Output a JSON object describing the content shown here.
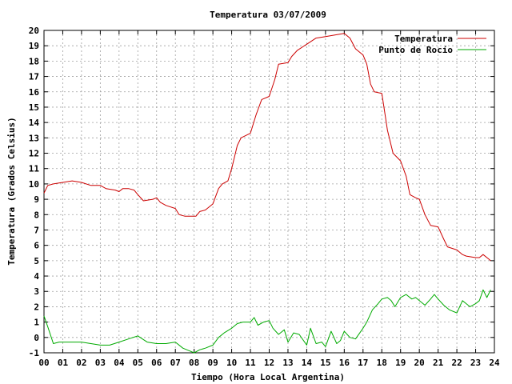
{
  "chart_data": {
    "type": "line",
    "title": "Temperatura 03/07/2009",
    "xlabel": "Tiempo (Hora Local Argentina)",
    "ylabel": "Temperatura (Grados Celsius)",
    "xlim": [
      0,
      24
    ],
    "ylim": [
      -1,
      20
    ],
    "xticks": [
      "00",
      "01",
      "02",
      "03",
      "04",
      "05",
      "06",
      "07",
      "08",
      "09",
      "10",
      "11",
      "12",
      "13",
      "14",
      "15",
      "16",
      "17",
      "18",
      "19",
      "20",
      "21",
      "22",
      "23",
      "24"
    ],
    "yticks": [
      "-1",
      "0",
      "1",
      "2",
      "3",
      "4",
      "5",
      "6",
      "7",
      "8",
      "9",
      "10",
      "11",
      "12",
      "13",
      "14",
      "15",
      "16",
      "17",
      "18",
      "19",
      "20"
    ],
    "grid": true,
    "legend_position": "top-right",
    "series": [
      {
        "name": "Temperatura",
        "color": "#cc0000",
        "points": [
          [
            0.0,
            9.4
          ],
          [
            0.2,
            9.9
          ],
          [
            0.5,
            10.0
          ],
          [
            1.0,
            10.1
          ],
          [
            1.5,
            10.2
          ],
          [
            2.0,
            10.1
          ],
          [
            2.5,
            9.9
          ],
          [
            3.0,
            9.9
          ],
          [
            3.3,
            9.7
          ],
          [
            3.8,
            9.6
          ],
          [
            4.0,
            9.5
          ],
          [
            4.2,
            9.7
          ],
          [
            4.5,
            9.7
          ],
          [
            4.8,
            9.6
          ],
          [
            5.0,
            9.3
          ],
          [
            5.3,
            8.9
          ],
          [
            5.8,
            9.0
          ],
          [
            6.0,
            9.1
          ],
          [
            6.2,
            8.8
          ],
          [
            6.5,
            8.6
          ],
          [
            7.0,
            8.4
          ],
          [
            7.2,
            8.0
          ],
          [
            7.5,
            7.9
          ],
          [
            7.9,
            7.9
          ],
          [
            8.1,
            7.9
          ],
          [
            8.3,
            8.2
          ],
          [
            8.6,
            8.3
          ],
          [
            9.0,
            8.7
          ],
          [
            9.3,
            9.7
          ],
          [
            9.5,
            10.0
          ],
          [
            9.8,
            10.2
          ],
          [
            10.0,
            11.0
          ],
          [
            10.3,
            12.5
          ],
          [
            10.5,
            13.0
          ],
          [
            11.0,
            13.3
          ],
          [
            11.3,
            14.5
          ],
          [
            11.6,
            15.5
          ],
          [
            12.0,
            15.7
          ],
          [
            12.3,
            16.8
          ],
          [
            12.5,
            17.8
          ],
          [
            13.0,
            17.9
          ],
          [
            13.2,
            18.3
          ],
          [
            13.5,
            18.7
          ],
          [
            14.0,
            19.1
          ],
          [
            14.5,
            19.5
          ],
          [
            15.0,
            19.6
          ],
          [
            15.5,
            19.7
          ],
          [
            16.0,
            19.8
          ],
          [
            16.3,
            19.5
          ],
          [
            16.6,
            18.8
          ],
          [
            17.0,
            18.4
          ],
          [
            17.2,
            17.8
          ],
          [
            17.4,
            16.5
          ],
          [
            17.6,
            16.0
          ],
          [
            18.0,
            15.9
          ],
          [
            18.3,
            13.5
          ],
          [
            18.6,
            12.0
          ],
          [
            19.0,
            11.5
          ],
          [
            19.3,
            10.5
          ],
          [
            19.5,
            9.3
          ],
          [
            19.8,
            9.1
          ],
          [
            20.0,
            9.0
          ],
          [
            20.3,
            8.0
          ],
          [
            20.6,
            7.3
          ],
          [
            21.0,
            7.2
          ],
          [
            21.3,
            6.4
          ],
          [
            21.5,
            5.9
          ],
          [
            22.0,
            5.7
          ],
          [
            22.3,
            5.4
          ],
          [
            22.5,
            5.3
          ],
          [
            23.0,
            5.2
          ],
          [
            23.2,
            5.2
          ],
          [
            23.4,
            5.4
          ],
          [
            23.7,
            5.1
          ],
          [
            23.8,
            5.0
          ]
        ]
      },
      {
        "name": "Punto de Rocío",
        "color": "#00aa00",
        "points": [
          [
            0.0,
            1.4
          ],
          [
            0.2,
            0.7
          ],
          [
            0.5,
            -0.4
          ],
          [
            0.8,
            -0.3
          ],
          [
            1.0,
            -0.3
          ],
          [
            1.5,
            -0.3
          ],
          [
            2.0,
            -0.3
          ],
          [
            2.5,
            -0.4
          ],
          [
            3.0,
            -0.5
          ],
          [
            3.5,
            -0.5
          ],
          [
            4.0,
            -0.3
          ],
          [
            4.5,
            -0.1
          ],
          [
            5.0,
            0.1
          ],
          [
            5.5,
            -0.3
          ],
          [
            6.0,
            -0.4
          ],
          [
            6.5,
            -0.4
          ],
          [
            7.0,
            -0.3
          ],
          [
            7.4,
            -0.7
          ],
          [
            7.8,
            -0.9
          ],
          [
            8.0,
            -1.0
          ],
          [
            8.3,
            -0.8
          ],
          [
            8.6,
            -0.7
          ],
          [
            9.0,
            -0.5
          ],
          [
            9.3,
            0.0
          ],
          [
            9.6,
            0.3
          ],
          [
            10.0,
            0.6
          ],
          [
            10.3,
            0.9
          ],
          [
            10.6,
            1.0
          ],
          [
            11.0,
            1.0
          ],
          [
            11.2,
            1.3
          ],
          [
            11.4,
            0.8
          ],
          [
            11.7,
            1.0
          ],
          [
            12.0,
            1.1
          ],
          [
            12.2,
            0.6
          ],
          [
            12.5,
            0.2
          ],
          [
            12.8,
            0.5
          ],
          [
            13.0,
            -0.3
          ],
          [
            13.3,
            0.3
          ],
          [
            13.6,
            0.2
          ],
          [
            14.0,
            -0.5
          ],
          [
            14.2,
            0.6
          ],
          [
            14.5,
            -0.4
          ],
          [
            14.8,
            -0.3
          ],
          [
            15.0,
            -0.6
          ],
          [
            15.3,
            0.4
          ],
          [
            15.6,
            -0.4
          ],
          [
            15.8,
            -0.2
          ],
          [
            16.0,
            0.4
          ],
          [
            16.3,
            0.0
          ],
          [
            16.6,
            -0.1
          ],
          [
            17.0,
            0.6
          ],
          [
            17.2,
            1.0
          ],
          [
            17.5,
            1.8
          ],
          [
            17.8,
            2.2
          ],
          [
            18.0,
            2.5
          ],
          [
            18.3,
            2.6
          ],
          [
            18.5,
            2.4
          ],
          [
            18.7,
            2.0
          ],
          [
            19.0,
            2.6
          ],
          [
            19.3,
            2.8
          ],
          [
            19.6,
            2.5
          ],
          [
            19.8,
            2.6
          ],
          [
            20.0,
            2.4
          ],
          [
            20.3,
            2.1
          ],
          [
            20.6,
            2.5
          ],
          [
            20.8,
            2.8
          ],
          [
            21.0,
            2.5
          ],
          [
            21.3,
            2.1
          ],
          [
            21.6,
            1.8
          ],
          [
            22.0,
            1.6
          ],
          [
            22.3,
            2.4
          ],
          [
            22.5,
            2.2
          ],
          [
            22.7,
            2.0
          ],
          [
            23.0,
            2.2
          ],
          [
            23.2,
            2.4
          ],
          [
            23.4,
            3.1
          ],
          [
            23.6,
            2.6
          ],
          [
            23.8,
            3.1
          ]
        ]
      }
    ]
  }
}
